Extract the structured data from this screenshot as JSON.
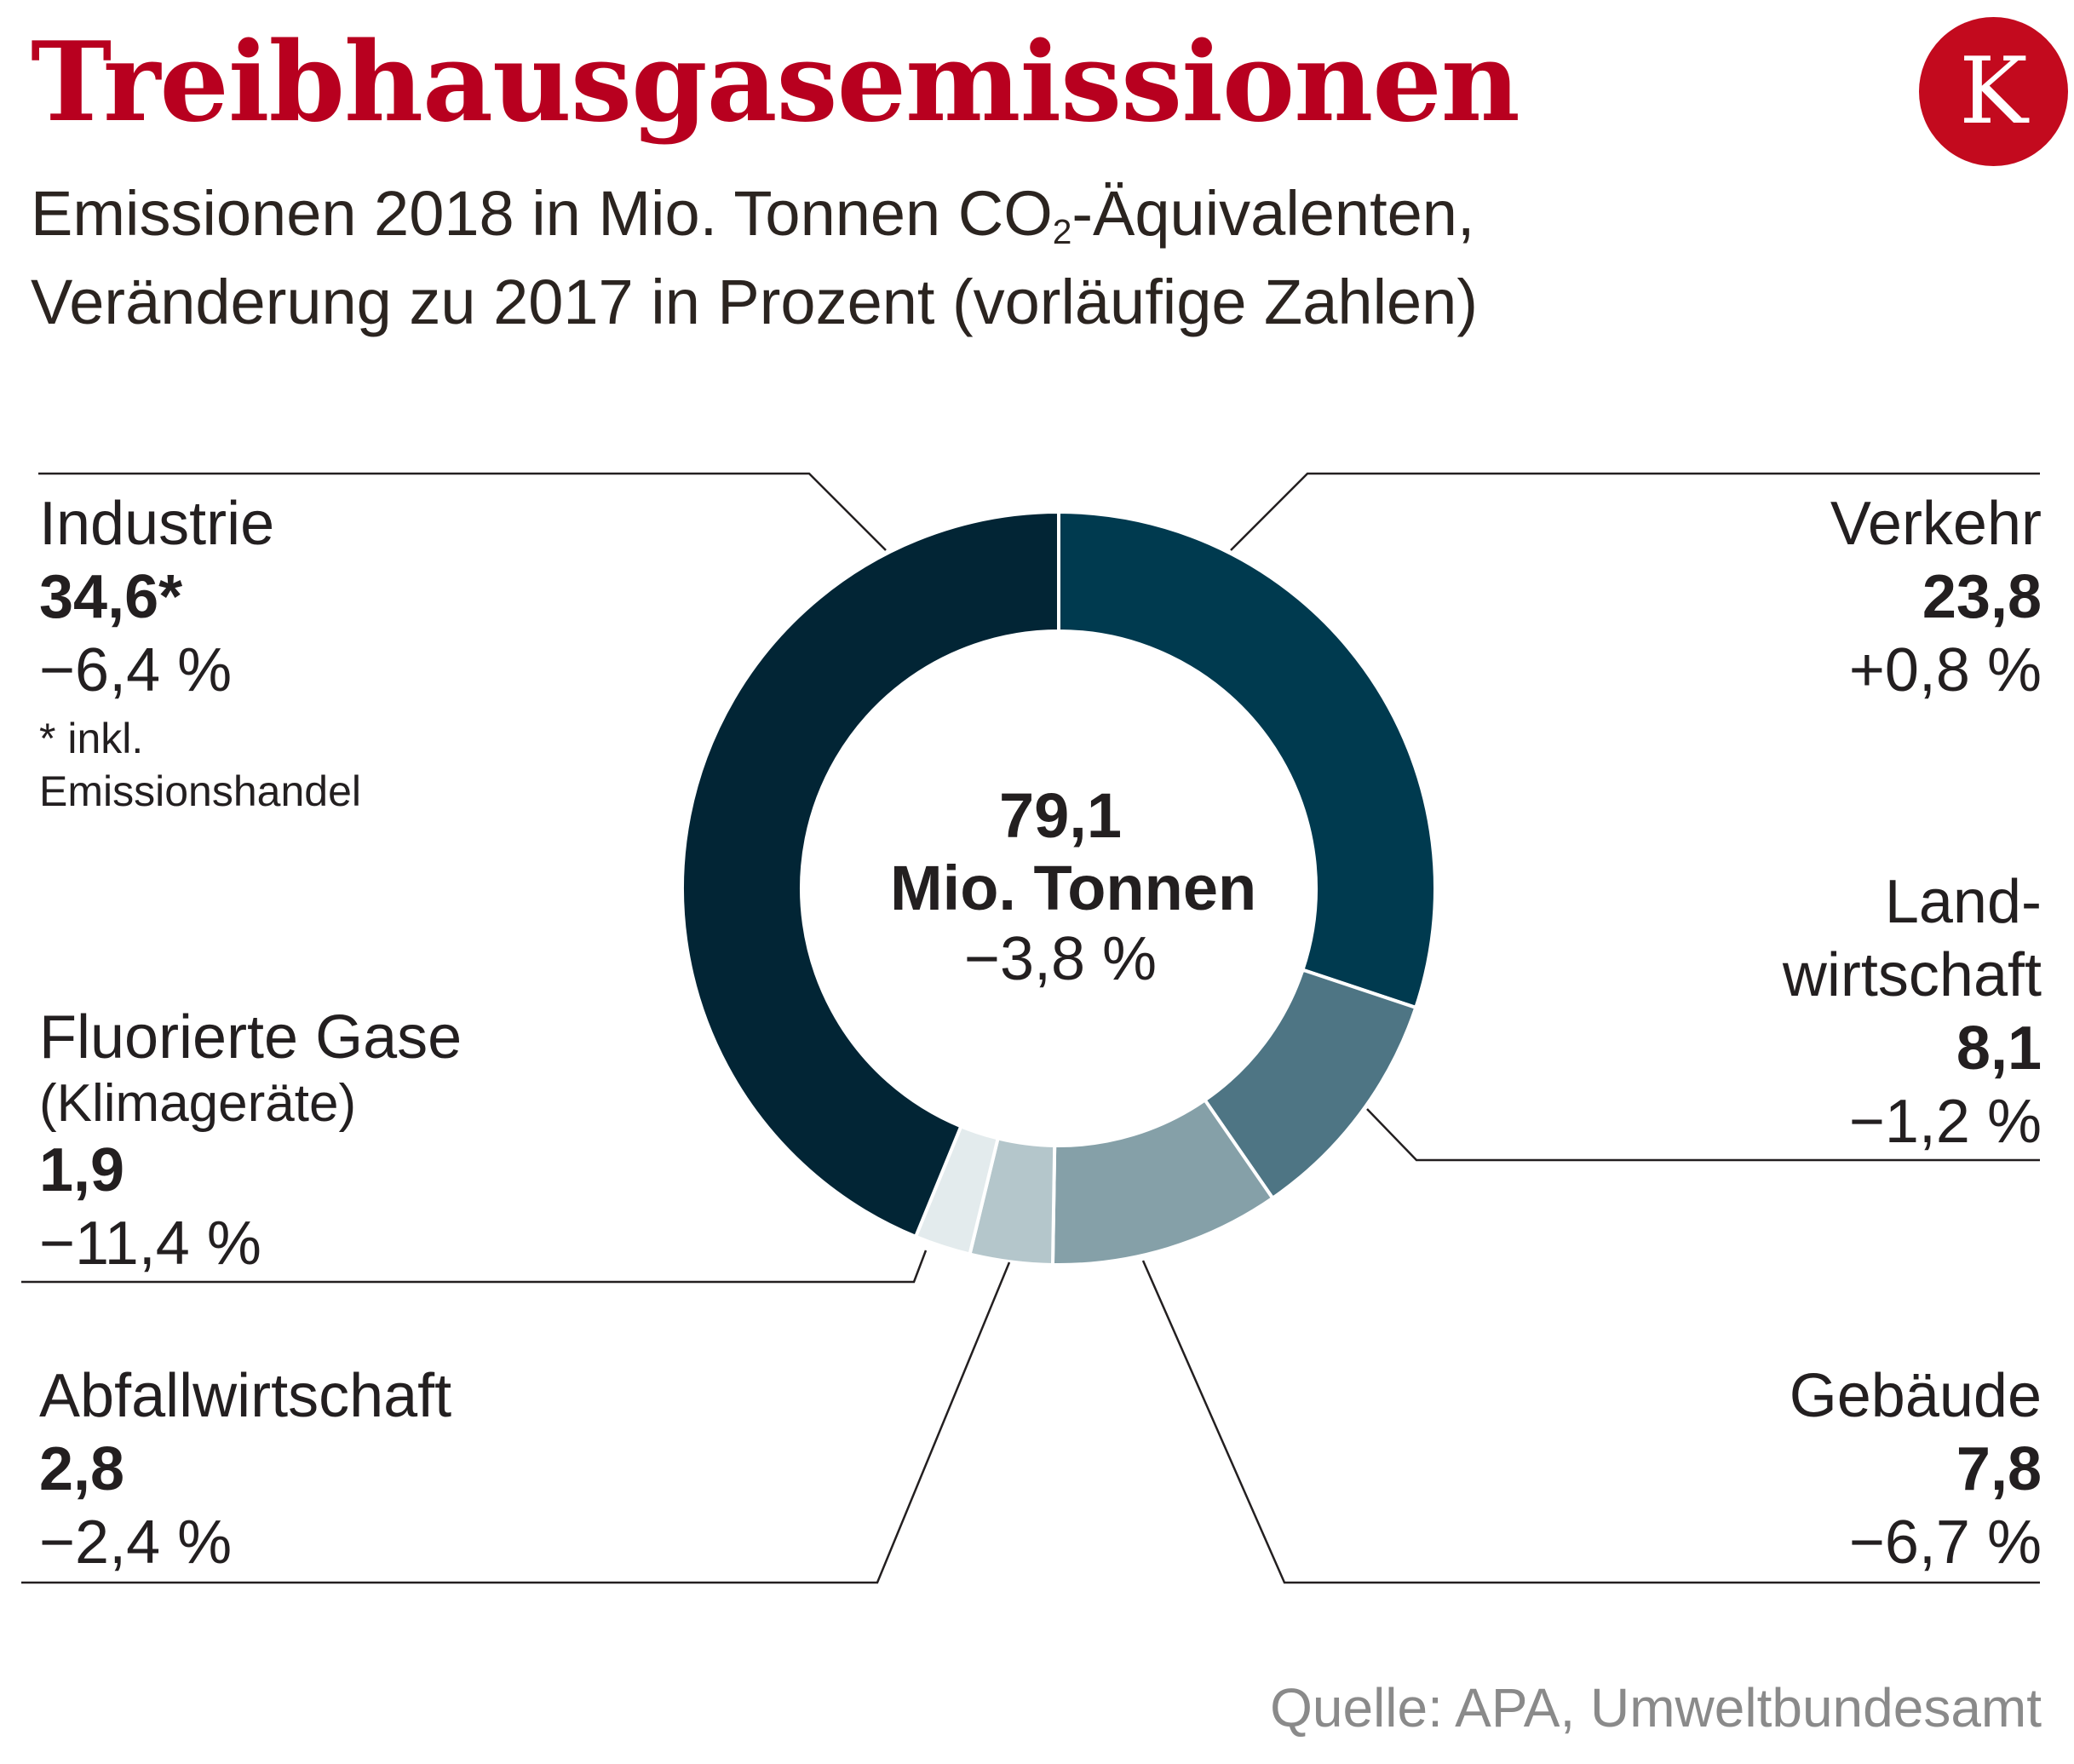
{
  "title": "Treibhausgasemissionen",
  "subtitle_line1_pre": "Emissionen 2018 in Mio. Tonnen CO",
  "subtitle_line1_sub": "2",
  "subtitle_line1_post": "-Äquivalenten,",
  "subtitle_line2": "Veränderung zu 2017 in Prozent (vorläufige Zahlen)",
  "logo_letter": "K",
  "source": "Quelle: APA, Umweltbundesamt",
  "center": {
    "value": "79,1",
    "unit": "Mio. Tonnen",
    "change": "−3,8 %"
  },
  "colors": {
    "title": "#b8001f",
    "logo": "#c30a1e"
  },
  "chart_data": {
    "type": "pie",
    "total": 79.1,
    "unit": "Mio. Tonnen CO2-Äquivalente",
    "segments": [
      {
        "name": "Verkehr",
        "value": 23.8,
        "value_label": "23,8",
        "change": "+0,8 %",
        "color": "#003a4f"
      },
      {
        "name": "Landwirtschaft",
        "value": 8.1,
        "value_label": "8,1",
        "change": "−1,2 %",
        "color": "#4e7584"
      },
      {
        "name": "Gebäude",
        "value": 7.8,
        "value_label": "7,8",
        "change": "−6,7 %",
        "color": "#85a0a8"
      },
      {
        "name": "Abfallwirtschaft",
        "value": 2.8,
        "value_label": "2,8",
        "change": "−2,4 %",
        "color": "#b4c6cb"
      },
      {
        "name": "Fluorierte Gase",
        "value": 1.9,
        "value_label": "1,9",
        "change": "−11,4 %",
        "color": "#e3ebed"
      },
      {
        "name": "Industrie",
        "value": 34.6,
        "value_label": "34,6*",
        "change": "−6,4 %",
        "color": "#022535"
      }
    ]
  },
  "labels": {
    "industrie": {
      "name": "Industrie",
      "value": "34,6*",
      "change": "−6,4 %",
      "note1": "* inkl.",
      "note2": "Emissionshandel"
    },
    "verkehr": {
      "name": "Verkehr",
      "value": "23,8",
      "change": "+0,8 %"
    },
    "landwirtschaft": {
      "name1": "Land-",
      "name2": "wirtschaft",
      "value": "8,1",
      "change": "−1,2 %"
    },
    "fluorierte": {
      "name": "Fluorierte Gase",
      "note": "(Klimageräte)",
      "value": "1,9",
      "change": "−11,4 %"
    },
    "abfall": {
      "name": "Abfallwirtschaft",
      "value": "2,8",
      "change": "−2,4 %"
    },
    "gebaeude": {
      "name": "Gebäude",
      "value": "7,8",
      "change": "−6,7 %"
    }
  }
}
